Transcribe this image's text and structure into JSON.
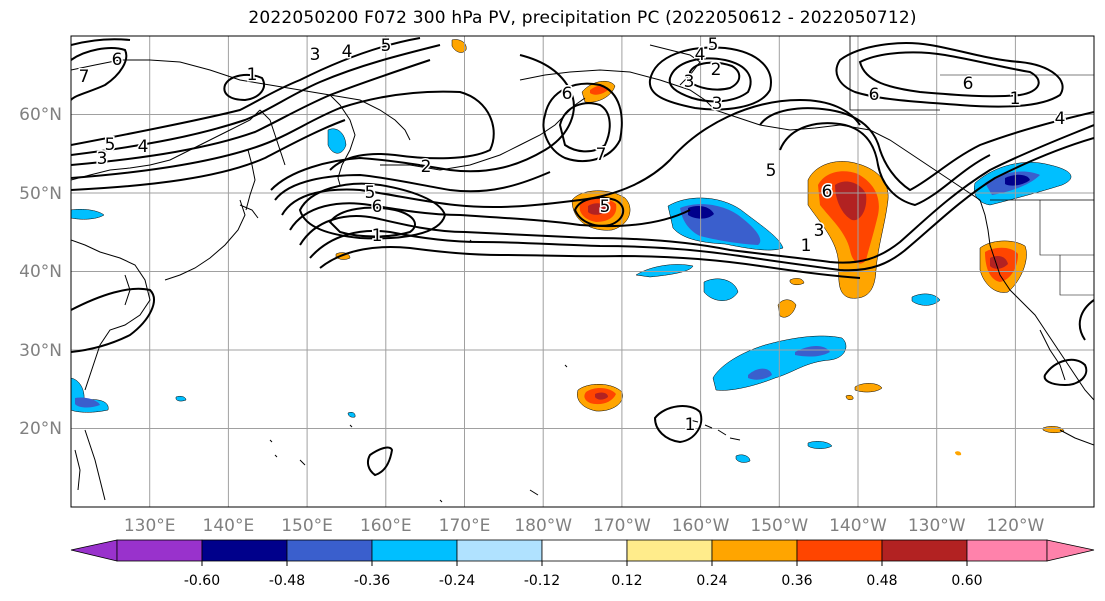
{
  "title": "2022050200 F072 300 hPa PV, precipitation PC (2022050612 - 2022050712)",
  "map": {
    "lat_labels": [
      "60°N",
      "50°N",
      "40°N",
      "30°N",
      "20°N"
    ],
    "lon_labels": [
      "130°E",
      "140°E",
      "150°E",
      "160°E",
      "170°E",
      "180°W",
      "170°W",
      "160°W",
      "150°W",
      "140°W",
      "130°W",
      "120°W"
    ],
    "extent": {
      "lon_min": 120,
      "lon_max": 250,
      "lat_min": 10,
      "lat_max": 70
    },
    "pv_contour_labels": [
      "6",
      "7",
      "3",
      "5",
      "4",
      "5",
      "1",
      "3",
      "4",
      "5",
      "6",
      "2",
      "1",
      "5",
      "6",
      "7",
      "6",
      "7",
      "5",
      "4",
      "5",
      "2",
      "3",
      "3",
      "6",
      "6",
      "1",
      "4",
      "5",
      "6",
      "1",
      "3",
      "1"
    ]
  },
  "colorbar": {
    "tick_labels": [
      "-0.60",
      "-0.48",
      "-0.36",
      "-0.24",
      "-0.12",
      "0.12",
      "0.24",
      "0.36",
      "0.48",
      "0.60"
    ],
    "colors": [
      "#9932CC",
      "#00008B",
      "#3A5FCD",
      "#00BFFF",
      "#B0E2FF",
      "#FFFFFF",
      "#FFEC8B",
      "#FFA500",
      "#FF4500",
      "#B22222",
      "#FF82AB"
    ]
  }
}
